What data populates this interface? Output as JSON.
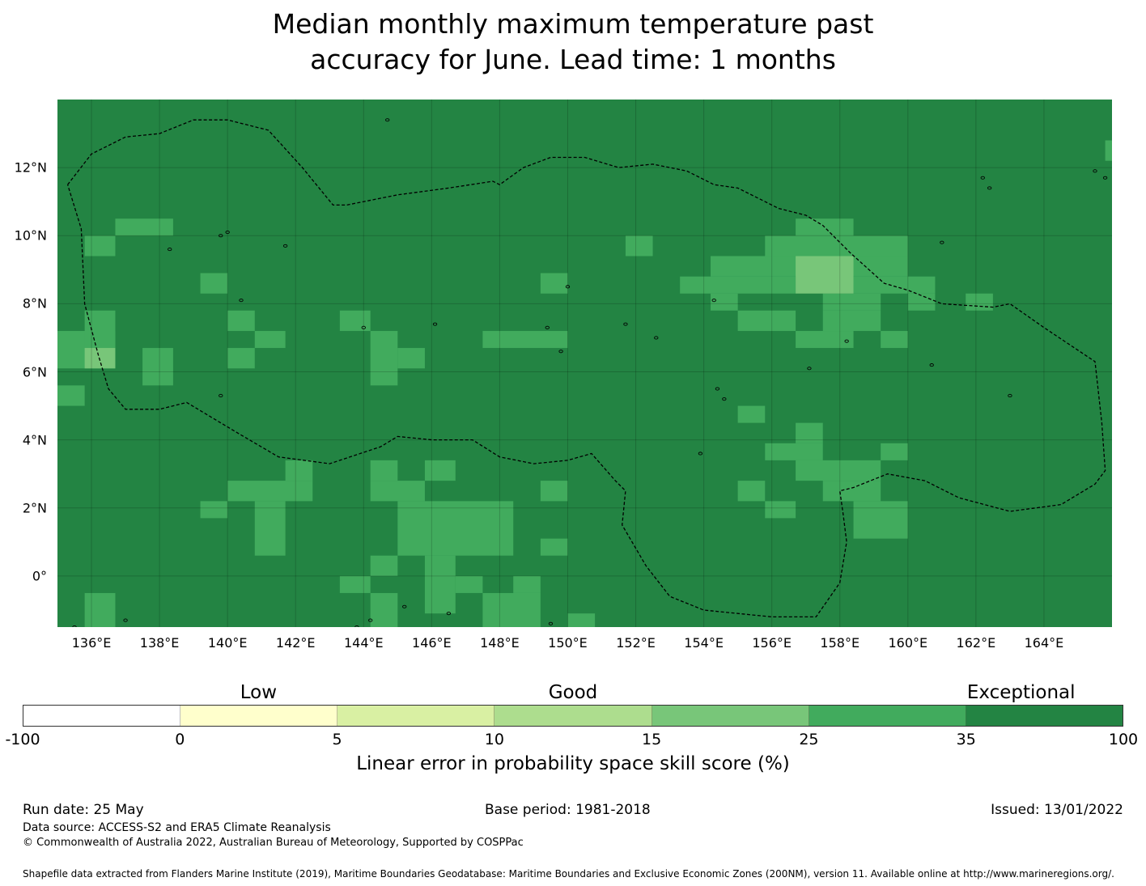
{
  "title_line1": "Median monthly maximum temperature past",
  "title_line2": "accuracy for June. Lead time: 1 months",
  "map": {
    "lon_range": [
      135,
      166
    ],
    "lat_range": [
      -1.5,
      14
    ],
    "x_ticks": [
      "136°E",
      "138°E",
      "140°E",
      "142°E",
      "144°E",
      "146°E",
      "148°E",
      "150°E",
      "152°E",
      "154°E",
      "156°E",
      "158°E",
      "160°E",
      "162°E",
      "164°E"
    ],
    "x_tick_lons": [
      136,
      138,
      140,
      142,
      144,
      146,
      148,
      150,
      152,
      154,
      156,
      158,
      160,
      162,
      164
    ],
    "y_ticks": [
      "12°N",
      "10°N",
      "8°N",
      "6°N",
      "4°N",
      "2°N",
      "0°"
    ],
    "y_tick_lats": [
      12,
      10,
      8,
      6,
      4,
      2,
      0
    ],
    "background_color": "#238443",
    "skill_cells": [
      {
        "lon_range": [
          136.7,
          138.4
        ],
        "lat_range": [
          10.0,
          10.5
        ],
        "class": "25-35"
      },
      {
        "lon_range": [
          135.8,
          136.7
        ],
        "lat_range": [
          9.4,
          10.0
        ],
        "class": "25-35"
      },
      {
        "lon_range": [
          139.2,
          140.0
        ],
        "lat_range": [
          8.3,
          8.9
        ],
        "class": "25-35"
      },
      {
        "lon_range": [
          140.0,
          140.8
        ],
        "lat_range": [
          7.2,
          7.8
        ],
        "class": "25-35"
      },
      {
        "lon_range": [
          140.8,
          141.7
        ],
        "lat_range": [
          6.7,
          7.2
        ],
        "class": "25-35"
      },
      {
        "lon_range": [
          140.0,
          140.8
        ],
        "lat_range": [
          6.1,
          6.7
        ],
        "class": "25-35"
      },
      {
        "lon_range": [
          135.0,
          136.7
        ],
        "lat_range": [
          6.1,
          7.2
        ],
        "class": "25-35"
      },
      {
        "lon_range": [
          135.8,
          136.7
        ],
        "lat_range": [
          6.7,
          7.8
        ],
        "class": "25-35"
      },
      {
        "lon_range": [
          135.8,
          136.7
        ],
        "lat_range": [
          6.1,
          6.7
        ],
        "class": "15-25"
      },
      {
        "lon_range": [
          137.5,
          138.4
        ],
        "lat_range": [
          5.6,
          6.7
        ],
        "class": "25-35"
      },
      {
        "lon_range": [
          135.0,
          135.8
        ],
        "lat_range": [
          5.0,
          5.6
        ],
        "class": "25-35"
      },
      {
        "lon_range": [
          143.3,
          144.2
        ],
        "lat_range": [
          7.2,
          7.8
        ],
        "class": "25-35"
      },
      {
        "lon_range": [
          144.2,
          145.0
        ],
        "lat_range": [
          5.6,
          7.2
        ],
        "class": "25-35"
      },
      {
        "lon_range": [
          145.0,
          145.8
        ],
        "lat_range": [
          6.1,
          6.7
        ],
        "class": "25-35"
      },
      {
        "lon_range": [
          149.2,
          150.0
        ],
        "lat_range": [
          8.3,
          8.9
        ],
        "class": "25-35"
      },
      {
        "lon_range": [
          147.5,
          150.0
        ],
        "lat_range": [
          6.7,
          7.2
        ],
        "class": "25-35"
      },
      {
        "lon_range": [
          151.7,
          152.5
        ],
        "lat_range": [
          9.4,
          10.0
        ],
        "class": "25-35"
      },
      {
        "lon_range": [
          156.7,
          158.4
        ],
        "lat_range": [
          9.9,
          10.5
        ],
        "class": "25-35"
      },
      {
        "lon_range": [
          155.8,
          160.0
        ],
        "lat_range": [
          9.4,
          10.0
        ],
        "class": "25-35"
      },
      {
        "lon_range": [
          154.2,
          160.0
        ],
        "lat_range": [
          8.8,
          9.4
        ],
        "class": "25-35"
      },
      {
        "lon_range": [
          153.3,
          156.7
        ],
        "lat_range": [
          8.3,
          8.8
        ],
        "class": "25-35"
      },
      {
        "lon_range": [
          158.4,
          160.8
        ],
        "lat_range": [
          8.3,
          8.8
        ],
        "class": "25-35"
      },
      {
        "lon_range": [
          154.2,
          155.0
        ],
        "lat_range": [
          7.8,
          8.3
        ],
        "class": "25-35"
      },
      {
        "lon_range": [
          157.5,
          159.2
        ],
        "lat_range": [
          7.8,
          8.3
        ],
        "class": "25-35"
      },
      {
        "lon_range": [
          160.0,
          160.8
        ],
        "lat_range": [
          7.8,
          8.3
        ],
        "class": "25-35"
      },
      {
        "lon_range": [
          161.7,
          162.5
        ],
        "lat_range": [
          7.8,
          8.3
        ],
        "class": "25-35"
      },
      {
        "lon_range": [
          155.0,
          156.7
        ],
        "lat_range": [
          7.2,
          7.8
        ],
        "class": "25-35"
      },
      {
        "lon_range": [
          157.5,
          159.2
        ],
        "lat_range": [
          7.2,
          7.8
        ],
        "class": "25-35"
      },
      {
        "lon_range": [
          156.7,
          158.4
        ],
        "lat_range": [
          6.7,
          7.2
        ],
        "class": "25-35"
      },
      {
        "lon_range": [
          159.2,
          160.0
        ],
        "lat_range": [
          6.7,
          7.2
        ],
        "class": "25-35"
      },
      {
        "lon_range": [
          156.7,
          158.4
        ],
        "lat_range": [
          8.3,
          9.4
        ],
        "class": "15-25"
      },
      {
        "lon_range": [
          165.8,
          166.0
        ],
        "lat_range": [
          12.2,
          12.8
        ],
        "class": "25-35"
      },
      {
        "lon_range": [
          155.0,
          155.8
        ],
        "lat_range": [
          4.5,
          5.0
        ],
        "class": "25-35"
      },
      {
        "lon_range": [
          156.7,
          157.5
        ],
        "lat_range": [
          3.9,
          4.5
        ],
        "class": "25-35"
      },
      {
        "lon_range": [
          155.8,
          157.5
        ],
        "lat_range": [
          3.4,
          3.9
        ],
        "class": "25-35"
      },
      {
        "lon_range": [
          156.7,
          159.2
        ],
        "lat_range": [
          2.8,
          3.4
        ],
        "class": "25-35"
      },
      {
        "lon_range": [
          159.2,
          160.0
        ],
        "lat_range": [
          3.4,
          3.9
        ],
        "class": "25-35"
      },
      {
        "lon_range": [
          155.0,
          155.8
        ],
        "lat_range": [
          2.2,
          2.8
        ],
        "class": "25-35"
      },
      {
        "lon_range": [
          157.5,
          159.2
        ],
        "lat_range": [
          2.2,
          2.8
        ],
        "class": "25-35"
      },
      {
        "lon_range": [
          155.8,
          156.7
        ],
        "lat_range": [
          1.7,
          2.2
        ],
        "class": "25-35"
      },
      {
        "lon_range": [
          158.4,
          160.0
        ],
        "lat_range": [
          1.1,
          2.2
        ],
        "class": "25-35"
      },
      {
        "lon_range": [
          141.7,
          142.5
        ],
        "lat_range": [
          2.8,
          3.4
        ],
        "class": "25-35"
      },
      {
        "lon_range": [
          140.0,
          142.5
        ],
        "lat_range": [
          2.2,
          2.8
        ],
        "class": "25-35"
      },
      {
        "lon_range": [
          139.2,
          140.0
        ],
        "lat_range": [
          1.7,
          2.2
        ],
        "class": "25-35"
      },
      {
        "lon_range": [
          140.8,
          141.7
        ],
        "lat_range": [
          0.6,
          2.2
        ],
        "class": "25-35"
      },
      {
        "lon_range": [
          144.2,
          145.0
        ],
        "lat_range": [
          2.8,
          3.4
        ],
        "class": "25-35"
      },
      {
        "lon_range": [
          144.2,
          145.8
        ],
        "lat_range": [
          2.2,
          2.8
        ],
        "class": "25-35"
      },
      {
        "lon_range": [
          145.8,
          146.7
        ],
        "lat_range": [
          2.8,
          3.4
        ],
        "class": "25-35"
      },
      {
        "lon_range": [
          145.0,
          148.4
        ],
        "lat_range": [
          0.6,
          2.2
        ],
        "class": "25-35"
      },
      {
        "lon_range": [
          149.2,
          150.0
        ],
        "lat_range": [
          2.2,
          2.8
        ],
        "class": "25-35"
      },
      {
        "lon_range": [
          149.2,
          150.0
        ],
        "lat_range": [
          0.6,
          1.1
        ],
        "class": "25-35"
      },
      {
        "lon_range": [
          143.3,
          144.2
        ],
        "lat_range": [
          -0.5,
          0.0
        ],
        "class": "25-35"
      },
      {
        "lon_range": [
          144.2,
          145.0
        ],
        "lat_range": [
          0.0,
          0.6
        ],
        "class": "25-35"
      },
      {
        "lon_range": [
          145.8,
          146.7
        ],
        "lat_range": [
          -1.1,
          0.6
        ],
        "class": "25-35"
      },
      {
        "lon_range": [
          146.7,
          147.5
        ],
        "lat_range": [
          -0.5,
          0.0
        ],
        "class": "25-35"
      },
      {
        "lon_range": [
          147.5,
          149.2
        ],
        "lat_range": [
          -1.5,
          -0.5
        ],
        "class": "25-35"
      },
      {
        "lon_range": [
          148.4,
          149.2
        ],
        "lat_range": [
          -0.5,
          0.0
        ],
        "class": "25-35"
      },
      {
        "lon_range": [
          144.2,
          145.0
        ],
        "lat_range": [
          -1.5,
          -0.5
        ],
        "class": "25-35"
      },
      {
        "lon_range": [
          135.8,
          136.7
        ],
        "lat_range": [
          -1.5,
          -0.5
        ],
        "class": "25-35"
      },
      {
        "lon_range": [
          150.0,
          150.8
        ],
        "lat_range": [
          -1.5,
          -1.1
        ],
        "class": "25-35"
      }
    ],
    "eez_boundary": [
      [
        135.3,
        11.5
      ],
      [
        136.0,
        12.4
      ],
      [
        137.0,
        12.9
      ],
      [
        138.0,
        13.0
      ],
      [
        139.0,
        13.4
      ],
      [
        140.0,
        13.4
      ],
      [
        141.2,
        13.1
      ],
      [
        142.2,
        12.0
      ],
      [
        143.1,
        10.9
      ],
      [
        143.5,
        10.9
      ],
      [
        145.0,
        11.2
      ],
      [
        146.5,
        11.4
      ],
      [
        147.8,
        11.6
      ],
      [
        148.0,
        11.5
      ],
      [
        148.7,
        12.0
      ],
      [
        149.5,
        12.3
      ],
      [
        150.5,
        12.3
      ],
      [
        151.5,
        12.0
      ],
      [
        152.5,
        12.1
      ],
      [
        153.5,
        11.9
      ],
      [
        154.3,
        11.5
      ],
      [
        155.0,
        11.4
      ],
      [
        155.8,
        11.0
      ],
      [
        156.2,
        10.8
      ],
      [
        157.0,
        10.6
      ],
      [
        157.5,
        10.3
      ],
      [
        158.3,
        9.5
      ],
      [
        159.3,
        8.6
      ],
      [
        160.0,
        8.4
      ],
      [
        161.0,
        8.0
      ],
      [
        162.5,
        7.9
      ],
      [
        163.0,
        8.0
      ],
      [
        164.0,
        7.3
      ],
      [
        165.5,
        6.3
      ],
      [
        165.7,
        4.5
      ],
      [
        165.8,
        3.1
      ],
      [
        165.5,
        2.7
      ],
      [
        164.5,
        2.1
      ],
      [
        163.0,
        1.9
      ],
      [
        161.5,
        2.3
      ],
      [
        160.5,
        2.8
      ],
      [
        159.4,
        3.0
      ],
      [
        158.4,
        2.6
      ],
      [
        158.0,
        2.5
      ],
      [
        158.1,
        1.8
      ],
      [
        158.2,
        1.0
      ],
      [
        158.0,
        -0.2
      ],
      [
        157.3,
        -1.2
      ],
      [
        156.0,
        -1.2
      ],
      [
        154.0,
        -1.0
      ],
      [
        153.0,
        -0.6
      ],
      [
        152.3,
        0.3
      ],
      [
        151.6,
        1.5
      ],
      [
        151.7,
        2.5
      ],
      [
        151.4,
        2.8
      ],
      [
        150.7,
        3.6
      ],
      [
        150.0,
        3.4
      ],
      [
        149.0,
        3.3
      ],
      [
        148.0,
        3.5
      ],
      [
        147.2,
        4.0
      ],
      [
        146.0,
        4.0
      ],
      [
        145.0,
        4.1
      ],
      [
        144.5,
        3.8
      ],
      [
        143.0,
        3.3
      ],
      [
        141.5,
        3.5
      ],
      [
        140.3,
        4.2
      ],
      [
        139.3,
        4.8
      ],
      [
        138.8,
        5.1
      ],
      [
        138.0,
        4.9
      ],
      [
        137.0,
        4.9
      ],
      [
        136.5,
        5.5
      ],
      [
        136.2,
        6.5
      ],
      [
        135.8,
        8.0
      ],
      [
        135.7,
        10.2
      ],
      [
        135.3,
        11.5
      ]
    ],
    "islands": [
      [
        144.7,
        13.4
      ],
      [
        138.3,
        9.6
      ],
      [
        139.8,
        10.0
      ],
      [
        141.7,
        9.7
      ],
      [
        140.4,
        8.1
      ],
      [
        144.0,
        7.3
      ],
      [
        146.1,
        7.4
      ],
      [
        149.8,
        6.6
      ],
      [
        149.4,
        7.3
      ],
      [
        151.7,
        7.4
      ],
      [
        152.6,
        7.0
      ],
      [
        154.3,
        8.1
      ],
      [
        154.4,
        5.5
      ],
      [
        154.6,
        5.2
      ],
      [
        158.2,
        6.9
      ],
      [
        157.1,
        6.1
      ],
      [
        163.0,
        5.3
      ],
      [
        160.7,
        6.2
      ],
      [
        161.0,
        9.8
      ],
      [
        162.2,
        11.7
      ],
      [
        162.4,
        11.4
      ],
      [
        165.5,
        11.9
      ],
      [
        165.8,
        11.7
      ],
      [
        153.9,
        3.6
      ],
      [
        150.0,
        8.5
      ],
      [
        140.0,
        10.1
      ],
      [
        139.8,
        5.3
      ],
      [
        145.2,
        -0.9
      ],
      [
        146.5,
        -1.1
      ],
      [
        149.5,
        -1.4
      ],
      [
        137.0,
        -1.3
      ],
      [
        135.5,
        -1.5
      ],
      [
        144.2,
        -1.3
      ],
      [
        143.8,
        -1.5
      ]
    ]
  },
  "colorbar": {
    "categories": [
      {
        "label": "Low",
        "at_segment": 1.5
      },
      {
        "label": "Good",
        "at_segment": 3.5
      },
      {
        "label": "Exceptional",
        "at_segment": 6.35
      }
    ],
    "colors": [
      "#ffffff",
      "#ffffcc",
      "#d9f0a3",
      "#addd8e",
      "#78c679",
      "#41ab5d",
      "#238443"
    ],
    "tick_labels": [
      "-100",
      "0",
      "5",
      "10",
      "15",
      "25",
      "35",
      "100"
    ],
    "label": "Linear error in probability space skill score (%)"
  },
  "footer": {
    "run_date": "Run date: 25 May",
    "base_period": "Base period: 1981-2018",
    "issued": "Issued: 13/01/2022",
    "data_source": "Data source: ACCESS-S2 and ERA5 Climate Reanalysis",
    "copyright": "© Commonwealth of Australia 2022, Australian Bureau of Meteorology, Supported by COSPPac",
    "shapefile_credit": "Shapefile data extracted from Flanders Marine Institute (2019), Maritime Boundaries Geodatabase: Maritime Boundaries and Exclusive Economic Zones (200NM), version 11. Available online at http://www.marineregions.org/."
  }
}
